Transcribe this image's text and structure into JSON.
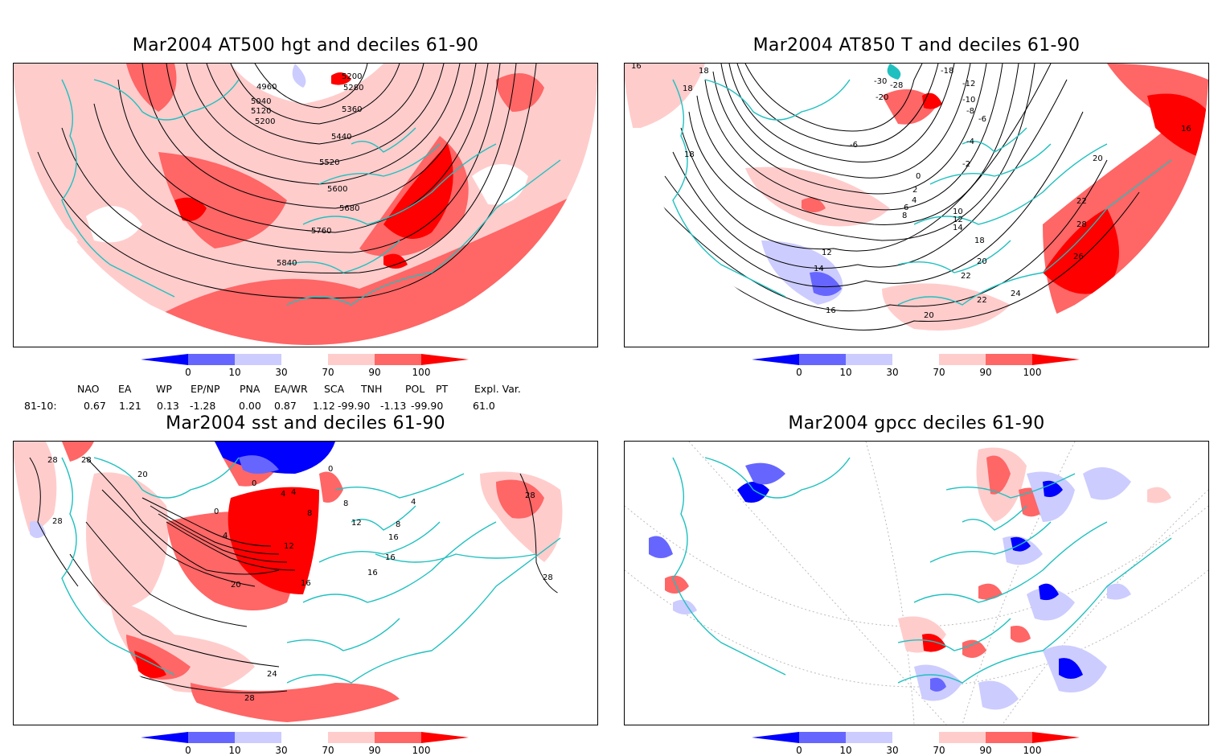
{
  "panels": [
    {
      "title": "Mar2004 AT500 hgt and deciles 61-90",
      "contour_labels": [
        "4960",
        "5040",
        "5120",
        "5200",
        "5200",
        "5280",
        "5360",
        "5440",
        "5520",
        "5600",
        "5680",
        "5760",
        "5840"
      ]
    },
    {
      "title": "Mar2004 AT850 T and deciles 61-90",
      "contour_labels": [
        "-30",
        "-28",
        "-20",
        "-18",
        "-12",
        "-10",
        "-8",
        "-6",
        "-6",
        "-4",
        "-2",
        "0",
        "2",
        "4",
        "6",
        "8",
        "10",
        "12",
        "14",
        "18",
        "18",
        "18",
        "16",
        "12",
        "14",
        "16",
        "18",
        "20",
        "20",
        "22",
        "22",
        "22",
        "24",
        "26",
        "28",
        "20",
        "16"
      ]
    },
    {
      "title": "Mar2004 sst and deciles 61-90",
      "contour_labels": [
        "28",
        "28",
        "28",
        "20",
        "0",
        "4",
        "8",
        "12",
        "16",
        "20",
        "24",
        "28",
        "4",
        "0",
        "0",
        "4",
        "8",
        "12",
        "16",
        "4",
        "8",
        "16",
        "16",
        "28",
        "28"
      ]
    },
    {
      "title": "Mar2004 gpcc deciles 61-90",
      "contour_labels": []
    }
  ],
  "colorbar": {
    "ticks": [
      "0",
      "10",
      "30",
      "70",
      "90",
      "100"
    ],
    "colors": [
      "#0000ff",
      "#6666ff",
      "#ccccff",
      "#ffffff",
      "#ffcccc",
      "#ff6666",
      "#ff0000"
    ]
  },
  "indices": {
    "headers": [
      "NAO",
      "EA",
      "WP",
      "EP/NP",
      "PNA",
      "EA/WR",
      "SCA",
      "TNH",
      "POL",
      "PT",
      "Expl. Var."
    ],
    "row_label": "81-10:",
    "values": [
      "0.67",
      "1.21",
      "0.13",
      "-1.28",
      "0.00",
      "0.87",
      "1.12",
      "-99.90",
      "-1.13",
      "-99.90",
      "61.0"
    ]
  },
  "colors": {
    "coast": "#20c0c0",
    "contour": "#000000"
  }
}
